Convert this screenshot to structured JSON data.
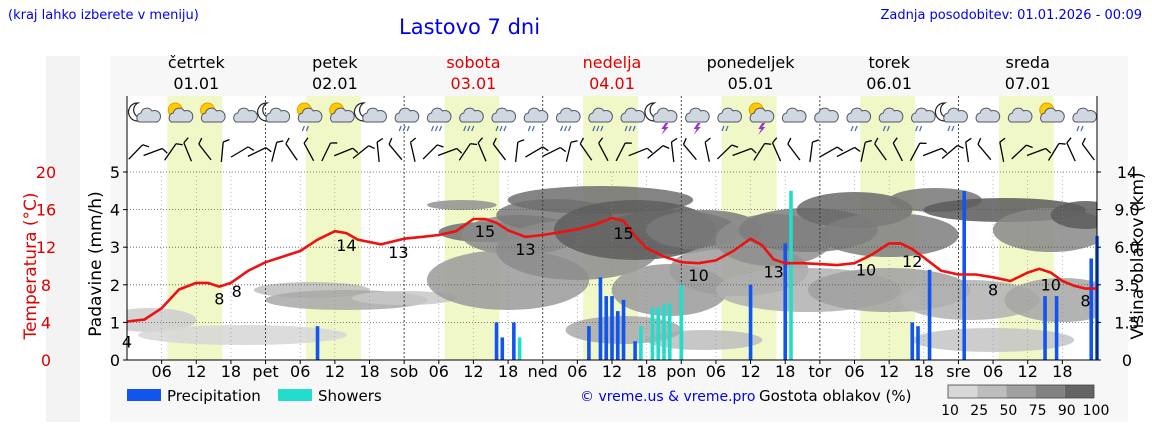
{
  "header": {
    "note": "(kraj lahko izberete v meniju)",
    "title": "Lastovo 7 dni",
    "updated": "Zadnja posodobitev: 01.01.2026 - 00:09"
  },
  "colors": {
    "link_blue": "#0000ee",
    "weekend_red": "#e00000",
    "temp_line": "#ee1111",
    "precip": "#1155ee",
    "showers": "#22ddcc",
    "day_band": "#f0f8c8"
  },
  "days": [
    {
      "name": "četrtek",
      "date": "01.01",
      "weekend": false
    },
    {
      "name": "petek",
      "date": "02.01",
      "weekend": false
    },
    {
      "name": "sobota",
      "date": "03.01",
      "weekend": true
    },
    {
      "name": "nedelja",
      "date": "04.01",
      "weekend": true
    },
    {
      "name": "ponedeljek",
      "date": "05.01",
      "weekend": false
    },
    {
      "name": "torek",
      "date": "06.01",
      "weekend": false
    },
    {
      "name": "sreda",
      "date": "07.01",
      "weekend": false
    }
  ],
  "icons": [
    "night-cloudy",
    "sunny-cloudy",
    "sunny-cloudy",
    "cloudy",
    "night-cloudy",
    "sun-drizzle",
    "sunny-cloudy",
    "night-cloud",
    "cloud-rain",
    "cloud-rain",
    "cloud-rain",
    "cloud-rain",
    "cloud-drizzle",
    "cloud-rain",
    "cloud-rain",
    "cloud-rain",
    "night-storm",
    "cloud-storm",
    "cloud-drizzle",
    "sun-storm",
    "cloudy",
    "cloudy",
    "cloud-drizzle",
    "cloud-drizzle",
    "cloud-drizzle",
    "night-drizzle",
    "cloudy",
    "cloudy",
    "sunny-cloudy",
    "cloud-drizzle"
  ],
  "chart_data": {
    "type": "line",
    "title": "Lastovo 7 dni",
    "x_tick_labels": [
      "06",
      "12",
      "18",
      "pet",
      "06",
      "12",
      "18",
      "sob",
      "06",
      "12",
      "18",
      "ned",
      "06",
      "12",
      "18",
      "pon",
      "06",
      "12",
      "18",
      "tor",
      "06",
      "12",
      "18",
      "sre",
      "06",
      "12",
      "18"
    ],
    "x_hours": [
      6,
      12,
      18,
      24,
      30,
      36,
      42,
      48,
      54,
      60,
      66,
      72,
      78,
      84,
      90,
      96,
      102,
      108,
      114,
      120,
      126,
      132,
      138,
      144,
      150,
      156,
      162
    ],
    "left_axis_temperature": {
      "label": "Temperatura (°C)",
      "ticks": [
        0,
        4,
        8,
        12,
        16,
        20
      ],
      "range": [
        0,
        20
      ]
    },
    "left_axis_precip": {
      "label": "Padavine (mm/h)",
      "ticks": [
        0,
        1,
        2,
        3,
        4,
        5
      ],
      "range": [
        0,
        5
      ]
    },
    "right_axis_cloud": {
      "label": "Višina oblakov (km)",
      "ticks": [
        "0",
        "1.5",
        "3.5",
        "6.0",
        "9.0",
        "14"
      ]
    },
    "temperature_series": {
      "name": "Temperatura",
      "hours": [
        0,
        3,
        6,
        9,
        12,
        14,
        16,
        18,
        21,
        24,
        27,
        30,
        33,
        36,
        38,
        40,
        44,
        48,
        51,
        54,
        57,
        60,
        62,
        64,
        66,
        69,
        72,
        75,
        78,
        81,
        84,
        86,
        88,
        90,
        93,
        96,
        99,
        102,
        105,
        108,
        110,
        112,
        114,
        117,
        120,
        123,
        126,
        129,
        132,
        134,
        136,
        138,
        141,
        144,
        147,
        150,
        153,
        156,
        158,
        160,
        162,
        164,
        166,
        168
      ],
      "values": [
        4.1,
        4.3,
        5.5,
        7.5,
        8.2,
        8.2,
        7.8,
        8.2,
        9.5,
        10.4,
        11,
        11.6,
        12.8,
        13.7,
        13.5,
        12.8,
        12.3,
        12.9,
        13.1,
        13.3,
        13.7,
        15,
        15,
        14.6,
        13.8,
        13.1,
        13.3,
        13.6,
        13.9,
        14.4,
        15.1,
        14.8,
        13.2,
        11.9,
        11,
        10.4,
        10.3,
        10.6,
        11.6,
        12.9,
        12.2,
        10.7,
        10.3,
        10.3,
        10.2,
        10.1,
        10.3,
        11.2,
        12.4,
        12.4,
        11.8,
        10.9,
        9.5,
        9.1,
        9.1,
        8.8,
        8.4,
        9.3,
        9.7,
        9.3,
        8.4,
        7.9,
        7.6,
        7.6
      ]
    },
    "temperature_labels": [
      {
        "hour": 0,
        "text": "4"
      },
      {
        "hour": 16,
        "text": "8"
      },
      {
        "hour": 19,
        "text": "8"
      },
      {
        "hour": 38,
        "text": "14"
      },
      {
        "hour": 47,
        "text": "13"
      },
      {
        "hour": 62,
        "text": "15"
      },
      {
        "hour": 69,
        "text": "13"
      },
      {
        "hour": 86,
        "text": "15"
      },
      {
        "hour": 99,
        "text": "10"
      },
      {
        "hour": 112,
        "text": "13"
      },
      {
        "hour": 128,
        "text": "10"
      },
      {
        "hour": 136,
        "text": "12"
      },
      {
        "hour": 150,
        "text": "8"
      },
      {
        "hour": 160,
        "text": "10"
      },
      {
        "hour": 166,
        "text": "8"
      }
    ],
    "precipitation_mm_h": [
      {
        "hour": 33,
        "value": 0.9
      },
      {
        "hour": 64,
        "value": 1.0
      },
      {
        "hour": 65,
        "value": 0.6
      },
      {
        "hour": 67,
        "value": 1.0
      },
      {
        "hour": 80,
        "value": 0.9
      },
      {
        "hour": 82,
        "value": 2.2
      },
      {
        "hour": 83,
        "value": 1.7
      },
      {
        "hour": 84,
        "value": 1.7
      },
      {
        "hour": 85,
        "value": 1.3
      },
      {
        "hour": 86,
        "value": 1.6
      },
      {
        "hour": 88,
        "value": 0.5
      },
      {
        "hour": 96,
        "value": 1.1
      },
      {
        "hour": 108,
        "value": 2.0
      },
      {
        "hour": 114,
        "value": 3.1
      },
      {
        "hour": 136,
        "value": 1.0
      },
      {
        "hour": 137,
        "value": 0.9
      },
      {
        "hour": 139,
        "value": 2.4
      },
      {
        "hour": 145,
        "value": 4.5
      },
      {
        "hour": 159,
        "value": 1.7
      },
      {
        "hour": 161,
        "value": 1.7
      },
      {
        "hour": 167,
        "value": 2.7
      },
      {
        "hour": 168,
        "value": 3.3
      }
    ],
    "showers_mm_h": [
      {
        "hour": 68,
        "value": 0.6
      },
      {
        "hour": 89,
        "value": 0.9
      },
      {
        "hour": 91,
        "value": 1.4
      },
      {
        "hour": 92,
        "value": 1.4
      },
      {
        "hour": 93,
        "value": 1.5
      },
      {
        "hour": 94,
        "value": 1.5
      },
      {
        "hour": 96,
        "value": 2.0
      },
      {
        "hour": 115,
        "value": 4.5
      }
    ],
    "legend": [
      {
        "name": "Precipitation",
        "color": "#1155ee"
      },
      {
        "name": "Showers",
        "color": "#22ddcc"
      }
    ],
    "cloud_density_legend": {
      "label": "Gostota oblakov (%)",
      "ticks": [
        "10",
        "25",
        "50",
        "75",
        "90",
        "100"
      ]
    },
    "credit": "© vreme.us & vreme.pro"
  }
}
